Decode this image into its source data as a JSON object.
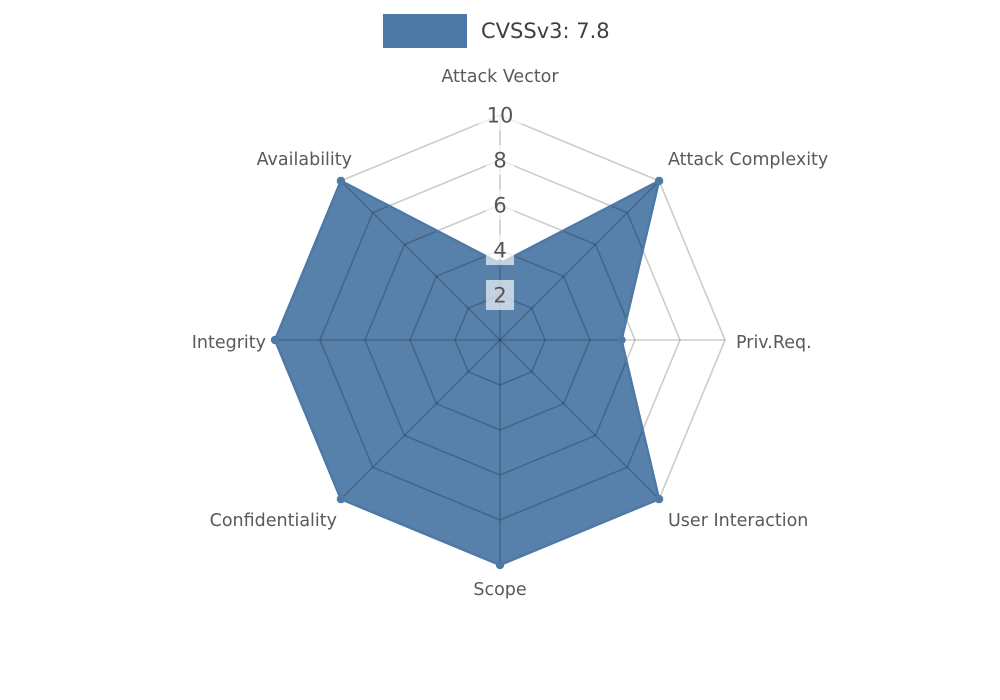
{
  "legend": {
    "label": "CVSSv3: 7.8",
    "swatch_color": "#4e79a7"
  },
  "chart_data": {
    "type": "radar",
    "title": "CVSSv3: 7.8",
    "categories": [
      "Attack Vector",
      "Attack Complexity",
      "Priv.Req.",
      "User Interaction",
      "Scope",
      "Confidentiality",
      "Integrity",
      "Availability"
    ],
    "series": [
      {
        "name": "CVSSv3: 7.8",
        "color": "#4e79a7",
        "values": [
          3.4,
          10,
          5.4,
          10,
          10,
          10,
          10,
          10
        ]
      }
    ],
    "rlim": [
      0,
      10
    ],
    "ticks": [
      2,
      4,
      6,
      8,
      10
    ],
    "grid": "spider-web",
    "legend_position": "top-center",
    "colors": {
      "grid_line": "rgba(0,0,0,0.2)",
      "axis_label": "#595959",
      "tick_label": "#555555",
      "tick_box": "rgba(255,255,255,0.65)",
      "background": "#ffffff"
    }
  }
}
